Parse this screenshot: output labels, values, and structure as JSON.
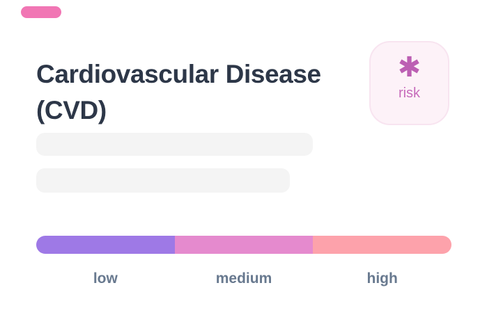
{
  "card": {
    "title": "Cardiovascular Disease (CVD)",
    "title_color": "#2d3748",
    "tag_pill_color": "#f176b4",
    "risk_badge": {
      "icon": "asterisk-icon",
      "icon_glyph": "✱",
      "icon_color": "#bc5fb3",
      "label": "risk",
      "label_color": "#c76bbb",
      "background": "#fdf2f8",
      "border_color": "#f8e4f0"
    },
    "skeleton_color": "#f4f4f4",
    "risk_scale": {
      "segments": [
        {
          "label": "low",
          "color": "#9e79e6"
        },
        {
          "label": "medium",
          "color": "#e58ace"
        },
        {
          "label": "high",
          "color": "#fda2ab"
        }
      ],
      "label_color": "#68798f"
    }
  }
}
